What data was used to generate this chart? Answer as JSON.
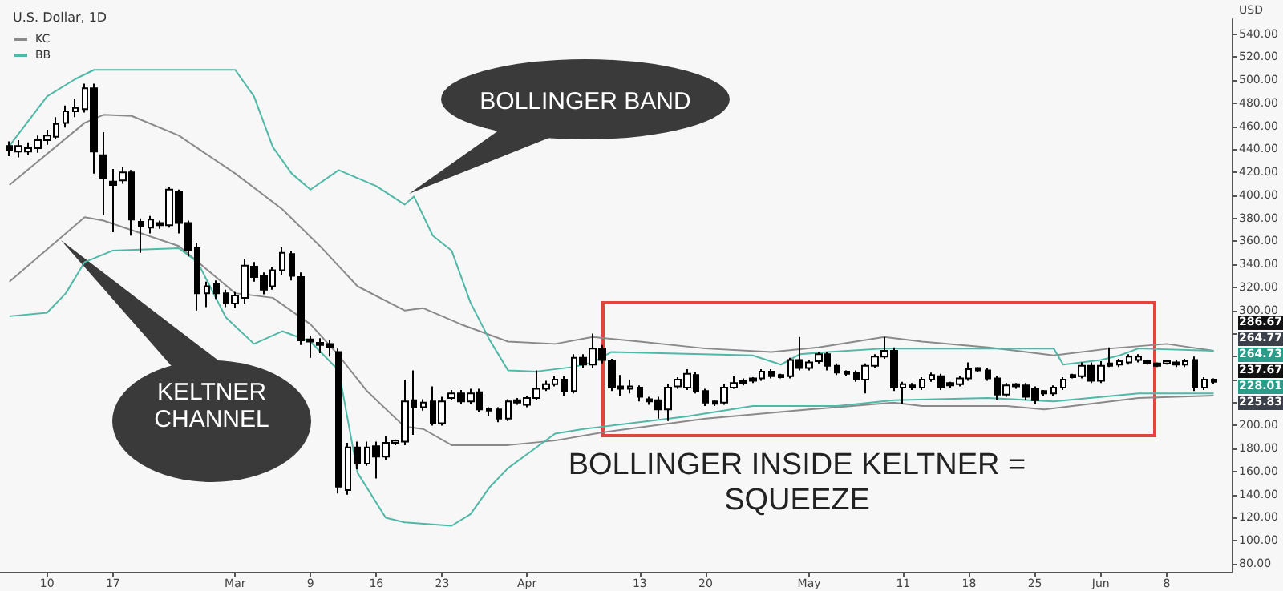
{
  "chart_data": {
    "type": "candlestick",
    "title": "U.S. Dollar, 1D",
    "ylabel": "USD",
    "color": "#000000",
    "legend": "top left",
    "grid": false,
    "x": [
      "--02-06",
      "--02-07",
      "--02-08",
      "--02-09",
      "--02-10",
      "--02-11",
      "--02-12",
      "--02-13",
      "--02-14",
      "--02-15",
      "--02-16",
      "--02-17",
      "--02-18",
      "--02-19",
      "--02-20",
      "--02-21",
      "--02-22",
      "--02-23",
      "--02-24",
      "--02-25",
      "--02-26",
      "--02-27",
      "--02-28",
      "--02-29",
      "--03-01",
      "--03-02",
      "--03-03",
      "--03-04",
      "--03-05",
      "--03-06",
      "--03-07",
      "--03-08",
      "--03-09",
      "--03-10",
      "--03-11",
      "--03-12",
      "--03-13",
      "--03-14",
      "--03-15",
      "--03-16",
      "--03-17",
      "--03-18",
      "--03-19",
      "--03-20",
      "--03-21",
      "--03-22",
      "--03-23",
      "--03-24",
      "--03-25",
      "--03-26",
      "--03-27",
      "--03-28",
      "--03-29",
      "--03-30",
      "--03-31",
      "--04-01",
      "--04-02",
      "--04-03",
      "--04-04",
      "--04-05",
      "--04-06",
      "--04-07",
      "--04-08",
      "--04-09",
      "--04-10",
      "--04-11",
      "--04-12",
      "--04-13",
      "--04-14",
      "--04-15",
      "--04-16",
      "--04-17",
      "--04-18",
      "--04-19",
      "--04-20",
      "--04-21",
      "--04-22",
      "--04-23",
      "--04-24",
      "--04-25",
      "--04-26",
      "--04-27",
      "--04-28",
      "--04-29",
      "--04-30",
      "--05-01",
      "--05-02",
      "--05-03",
      "--05-04",
      "--05-05",
      "--05-06",
      "--05-07",
      "--05-08",
      "--05-09",
      "--05-10",
      "--05-11",
      "--05-12",
      "--05-13",
      "--05-14",
      "--05-15",
      "--05-16",
      "--05-17",
      "--05-18",
      "--05-19",
      "--05-20",
      "--05-21",
      "--05-22",
      "--05-23",
      "--05-24",
      "--05-25",
      "--05-26",
      "--05-27",
      "--05-28",
      "--05-29",
      "--05-30",
      "--05-31",
      "--06-01",
      "--06-02",
      "--06-03",
      "--06-04",
      "--06-05",
      "--06-06",
      "--06-07",
      "--06-08",
      "--06-09",
      "--06-10",
      "--06-11",
      "--06-12",
      "--06-13"
    ],
    "ohlc": [
      [
        443,
        447,
        434,
        439
      ],
      [
        438,
        448,
        433,
        443
      ],
      [
        438,
        446,
        435,
        441
      ],
      [
        441,
        452,
        437,
        448
      ],
      [
        448,
        457,
        444,
        452
      ],
      [
        451,
        468,
        449,
        462
      ],
      [
        463,
        478,
        459,
        473
      ],
      [
        473,
        484,
        468,
        476
      ],
      [
        475,
        497,
        472,
        493
      ],
      [
        493,
        497,
        419,
        438
      ],
      [
        435,
        455,
        383,
        415
      ],
      [
        412,
        423,
        368,
        409
      ],
      [
        413,
        425,
        410,
        420
      ],
      [
        420,
        422,
        365,
        379
      ],
      [
        377,
        380,
        350,
        373
      ],
      [
        372,
        382,
        367,
        379
      ],
      [
        376,
        378,
        371,
        374
      ],
      [
        374,
        407,
        372,
        405
      ],
      [
        403,
        405,
        367,
        376
      ],
      [
        376,
        378,
        347,
        352
      ],
      [
        354,
        359,
        300,
        315
      ],
      [
        315,
        325,
        303,
        321
      ],
      [
        323,
        326,
        310,
        315
      ],
      [
        315,
        318,
        303,
        306
      ],
      [
        306,
        316,
        302,
        313
      ],
      [
        311,
        345,
        306,
        339
      ],
      [
        338,
        342,
        325,
        329
      ],
      [
        330,
        333,
        314,
        318
      ],
      [
        321,
        338,
        318,
        335
      ],
      [
        335,
        355,
        331,
        350
      ],
      [
        349,
        352,
        326,
        330
      ],
      [
        329,
        333,
        270,
        274
      ],
      [
        275,
        278,
        259,
        273
      ],
      [
        272,
        276,
        263,
        270
      ],
      [
        271,
        274,
        260,
        268
      ],
      [
        264,
        267,
        141,
        147
      ],
      [
        144,
        185,
        140,
        181
      ],
      [
        181,
        186,
        162,
        167
      ],
      [
        167,
        186,
        165,
        181
      ],
      [
        182,
        186,
        154,
        173
      ],
      [
        173,
        191,
        170,
        185
      ],
      [
        185,
        188,
        183,
        187
      ],
      [
        186,
        240,
        183,
        221
      ],
      [
        222,
        248,
        192,
        216
      ],
      [
        216,
        223,
        213,
        220
      ],
      [
        221,
        234,
        200,
        202
      ],
      [
        202,
        225,
        200,
        221
      ],
      [
        224,
        231,
        222,
        228
      ],
      [
        228,
        231,
        219,
        221
      ],
      [
        221,
        232,
        219,
        228
      ],
      [
        229,
        232,
        212,
        214
      ],
      [
        215,
        216,
        208,
        213
      ],
      [
        214,
        216,
        203,
        206
      ],
      [
        206,
        223,
        204,
        221
      ],
      [
        222,
        224,
        218,
        220
      ],
      [
        218,
        226,
        216,
        224
      ],
      [
        224,
        248,
        222,
        232
      ],
      [
        232,
        239,
        230,
        236
      ],
      [
        236,
        243,
        234,
        240
      ],
      [
        240,
        243,
        226,
        230
      ],
      [
        230,
        262,
        228,
        259
      ],
      [
        259,
        262,
        250,
        253
      ],
      [
        253,
        280,
        250,
        267
      ],
      [
        267,
        270,
        254,
        257
      ],
      [
        256,
        258,
        230,
        233
      ],
      [
        234,
        244,
        226,
        232
      ],
      [
        232,
        240,
        228,
        234
      ],
      [
        233,
        235,
        221,
        225
      ],
      [
        223,
        225,
        218,
        221
      ],
      [
        222,
        225,
        206,
        214
      ],
      [
        214,
        236,
        204,
        233
      ],
      [
        234,
        242,
        232,
        240
      ],
      [
        233,
        249,
        231,
        245
      ],
      [
        244,
        247,
        228,
        230
      ],
      [
        230,
        232,
        217,
        220
      ],
      [
        221,
        222,
        217,
        219
      ],
      [
        220,
        236,
        218,
        233
      ],
      [
        233,
        243,
        232,
        237
      ],
      [
        239,
        241,
        235,
        237
      ],
      [
        241,
        242,
        237,
        239
      ],
      [
        241,
        249,
        239,
        247
      ],
      [
        247,
        249,
        241,
        243
      ],
      [
        244,
        245,
        241,
        242
      ],
      [
        243,
        259,
        241,
        257
      ],
      [
        257,
        277,
        248,
        250
      ],
      [
        250,
        257,
        248,
        255
      ],
      [
        256,
        264,
        254,
        262
      ],
      [
        262,
        264,
        248,
        252
      ],
      [
        252,
        254,
        244,
        246
      ],
      [
        247,
        248,
        243,
        245
      ],
      [
        246,
        248,
        238,
        240
      ],
      [
        240,
        254,
        228,
        252
      ],
      [
        252,
        262,
        250,
        260
      ],
      [
        260,
        277,
        258,
        265
      ],
      [
        265,
        268,
        230,
        233
      ],
      [
        233,
        238,
        219,
        236
      ],
      [
        235,
        237,
        231,
        233
      ],
      [
        233,
        242,
        231,
        240
      ],
      [
        240,
        246,
        238,
        244
      ],
      [
        243,
        245,
        231,
        233
      ],
      [
        237,
        238,
        233,
        235
      ],
      [
        236,
        243,
        234,
        241
      ],
      [
        241,
        255,
        239,
        249
      ],
      [
        250,
        251,
        247,
        248
      ],
      [
        248,
        250,
        239,
        241
      ],
      [
        241,
        243,
        222,
        227
      ],
      [
        227,
        237,
        225,
        235
      ],
      [
        236,
        237,
        232,
        234
      ],
      [
        235,
        237,
        222,
        225
      ],
      [
        232,
        234,
        219,
        222
      ],
      [
        230,
        231,
        226,
        228
      ],
      [
        228,
        235,
        226,
        233
      ],
      [
        233,
        242,
        231,
        240
      ],
      [
        244,
        245,
        241,
        242
      ],
      [
        243,
        255,
        241,
        252
      ],
      [
        252,
        255,
        237,
        239
      ],
      [
        239,
        256,
        237,
        252
      ],
      [
        254,
        268,
        251,
        252
      ],
      [
        253,
        258,
        251,
        256
      ],
      [
        255,
        262,
        253,
        260
      ],
      [
        257,
        262,
        255,
        260
      ],
      [
        256,
        257,
        253,
        254
      ],
      [
        254,
        255,
        251,
        252
      ],
      [
        254,
        257,
        253,
        256
      ],
      [
        255,
        257,
        251,
        253
      ],
      [
        253,
        258,
        251,
        256
      ],
      [
        257,
        260,
        230,
        233
      ],
      [
        233,
        242,
        231,
        240
      ],
      [
        240,
        241,
        236,
        238
      ]
    ],
    "series": [
      {
        "name": "BB",
        "type": "line",
        "color": "#4fb8a6",
        "x": [
          "--02-06",
          "--02-10",
          "--02-13",
          "--02-15",
          "--03-01",
          "--03-03",
          "--03-05",
          "--03-07",
          "--03-09",
          "--03-12",
          "--03-16",
          "--03-19",
          "--03-20",
          "--03-22",
          "--03-24",
          "--03-26",
          "--03-28",
          "--03-30",
          "--04-02",
          "--04-06",
          "--04-08",
          "--04-10",
          "--04-25",
          "--04-28",
          "--04-30",
          "--05-03",
          "--05-09",
          "--05-27",
          "--05-28",
          "--06-01",
          "--06-03",
          "--06-05",
          "--06-13"
        ],
        "values": [
          443,
          486,
          501,
          509,
          509,
          486,
          442,
          419,
          405,
          422,
          408,
          392,
          399,
          365,
          352,
          307,
          275,
          248,
          247,
          251,
          255,
          264,
          261,
          253,
          262,
          264,
          267,
          267,
          253,
          257,
          261,
          267,
          265
        ]
      },
      {
        "type": "line",
        "color": "#4fb8a6",
        "x": [
          "--02-06",
          "--02-10",
          "--02-12",
          "--02-14",
          "--02-17",
          "--02-24",
          "--02-26",
          "--02-29",
          "--03-03",
          "--03-06",
          "--03-09",
          "--03-12",
          "--03-14",
          "--03-17",
          "--03-19",
          "--03-24",
          "--03-26",
          "--03-28",
          "--03-30",
          "--04-02",
          "--04-04",
          "--04-07",
          "--04-09",
          "--04-18",
          "--04-25",
          "--05-04",
          "--05-10",
          "--05-20",
          "--05-27",
          "--06-05",
          "--06-13"
        ],
        "values": [
          295,
          298,
          315,
          342,
          352,
          354,
          342,
          294,
          271,
          282,
          273,
          248,
          159,
          120,
          116,
          113,
          123,
          146,
          163,
          181,
          193,
          197,
          199,
          208,
          217,
          217,
          222,
          224,
          221,
          228,
          228
        ]
      },
      {
        "name": "KC",
        "type": "line",
        "color": "#8a8a8a",
        "x": [
          "--02-06",
          "--02-14",
          "--02-16",
          "--02-19",
          "--02-24",
          "--03-01",
          "--03-06",
          "--03-10",
          "--03-14",
          "--03-19",
          "--03-21",
          "--03-25",
          "--03-30",
          "--04-04",
          "--04-08",
          "--04-13",
          "--04-20",
          "--04-27",
          "--05-02",
          "--05-09",
          "--05-13",
          "--05-20",
          "--05-27",
          "--06-02",
          "--06-08",
          "--06-13"
        ],
        "values": [
          409,
          463,
          470,
          469,
          452,
          419,
          388,
          356,
          321,
          300,
          302,
          288,
          273,
          271,
          277,
          273,
          267,
          264,
          268,
          277,
          273,
          268,
          261,
          267,
          271,
          265
        ]
      },
      {
        "type": "line",
        "color": "#8a8a8a",
        "x": [
          "--02-06",
          "--02-14",
          "--02-16",
          "--02-24",
          "--03-01",
          "--03-05",
          "--03-09",
          "--03-12",
          "--03-15",
          "--03-19",
          "--03-21",
          "--03-24",
          "--03-30",
          "--04-04",
          "--04-09",
          "--04-20",
          "--05-01",
          "--05-10",
          "--05-13",
          "--05-22",
          "--05-26",
          "--06-05",
          "--06-13"
        ],
        "values": [
          325,
          381,
          378,
          356,
          315,
          311,
          288,
          261,
          230,
          199,
          197,
          183,
          183,
          187,
          194,
          206,
          214,
          220,
          217,
          217,
          214,
          224,
          226
        ]
      }
    ],
    "xlim": [
      "--02-05",
      "--06-15"
    ],
    "xticks": [
      {
        "value": "--02-10",
        "label": "10"
      },
      {
        "value": "--02-17",
        "label": "17"
      },
      {
        "value": "--03-01",
        "label": "Mar"
      },
      {
        "value": "--03-09",
        "label": "9"
      },
      {
        "value": "--03-16",
        "label": "16"
      },
      {
        "value": "--03-23",
        "label": "23"
      },
      {
        "value": "--04-01",
        "label": "Apr"
      },
      {
        "value": "--04-13",
        "label": "13"
      },
      {
        "value": "--04-20",
        "label": "20"
      },
      {
        "value": "--05-01",
        "label": "May"
      },
      {
        "value": "--05-11",
        "label": "11"
      },
      {
        "value": "--05-18",
        "label": "18"
      },
      {
        "value": "--05-25",
        "label": "25"
      },
      {
        "value": "--06-01",
        "label": "Jun"
      },
      {
        "value": "--06-08",
        "label": "8"
      }
    ],
    "ylim": [
      73,
      553
    ],
    "yticks": [
      {
        "value": 80,
        "label": "80.00"
      },
      {
        "value": 100,
        "label": "100.00"
      },
      {
        "value": 120,
        "label": "120.00"
      },
      {
        "value": 140,
        "label": "140.00"
      },
      {
        "value": 160,
        "label": "160.00"
      },
      {
        "value": 180,
        "label": "180.00"
      },
      {
        "value": 200,
        "label": "200.00"
      },
      {
        "value": 220,
        "label": null
      },
      {
        "value": 240,
        "label": null
      },
      {
        "value": 260,
        "label": null
      },
      {
        "value": 280,
        "label": null
      },
      {
        "value": 300,
        "label": "300.00"
      },
      {
        "value": 320,
        "label": "320.00"
      },
      {
        "value": 340,
        "label": "340.00"
      },
      {
        "value": 360,
        "label": "360.00"
      },
      {
        "value": 380,
        "label": "380.00"
      },
      {
        "value": 400,
        "label": "400.00"
      },
      {
        "value": 420,
        "label": "420.00"
      },
      {
        "value": 440,
        "label": "440.00"
      },
      {
        "value": 460,
        "label": "460.00"
      },
      {
        "value": 480,
        "label": "480.00"
      },
      {
        "value": 500,
        "label": "500.00"
      },
      {
        "value": 520,
        "label": "520.00"
      },
      {
        "value": 540,
        "label": "540.00"
      }
    ],
    "annotations": [
      "BOLLINGER BAND",
      "KELTNER CHANNEL",
      "BOLLINGER INSIDE KELTNER = SQUEEZE",
      "286.67",
      "264.77",
      "264.73",
      "237.67",
      "228.01",
      "225.83"
    ]
  }
}
